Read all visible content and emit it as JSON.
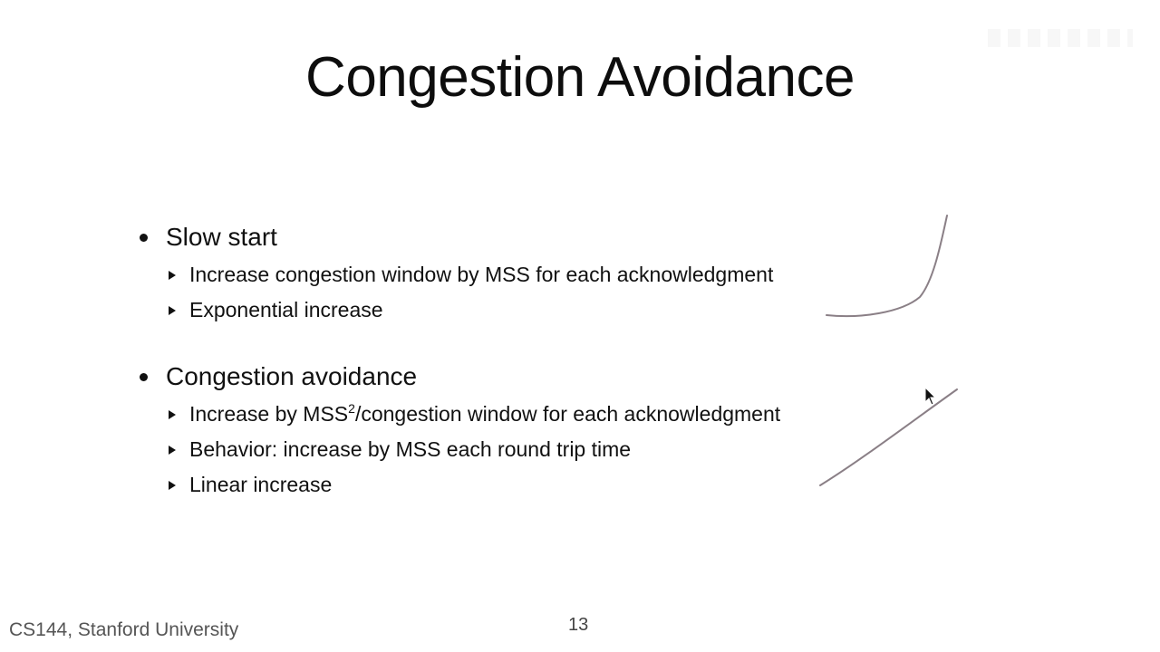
{
  "slide": {
    "title": "Congestion Avoidance",
    "bullets": [
      {
        "label": "Slow start",
        "subitems": [
          {
            "text": "Increase congestion window by MSS for each acknowledgment"
          },
          {
            "text": "Exponential increase"
          }
        ]
      },
      {
        "label": "Congestion avoidance",
        "subitems": [
          {
            "text_before": "Increase by MSS",
            "sup": "2",
            "text_after": "/congestion window for each acknowledgment"
          },
          {
            "text": "Behavior: increase by MSS each round trip time"
          },
          {
            "text": "Linear increase"
          }
        ]
      }
    ],
    "footer": "CS144, Stanford University",
    "page_number": "13"
  },
  "annotations": {
    "ink_color": "#8a7f86",
    "sketches": [
      "exponential-curve-sketch",
      "linear-line-sketch"
    ]
  },
  "cursor": {
    "icon": "mouse-pointer-icon"
  }
}
